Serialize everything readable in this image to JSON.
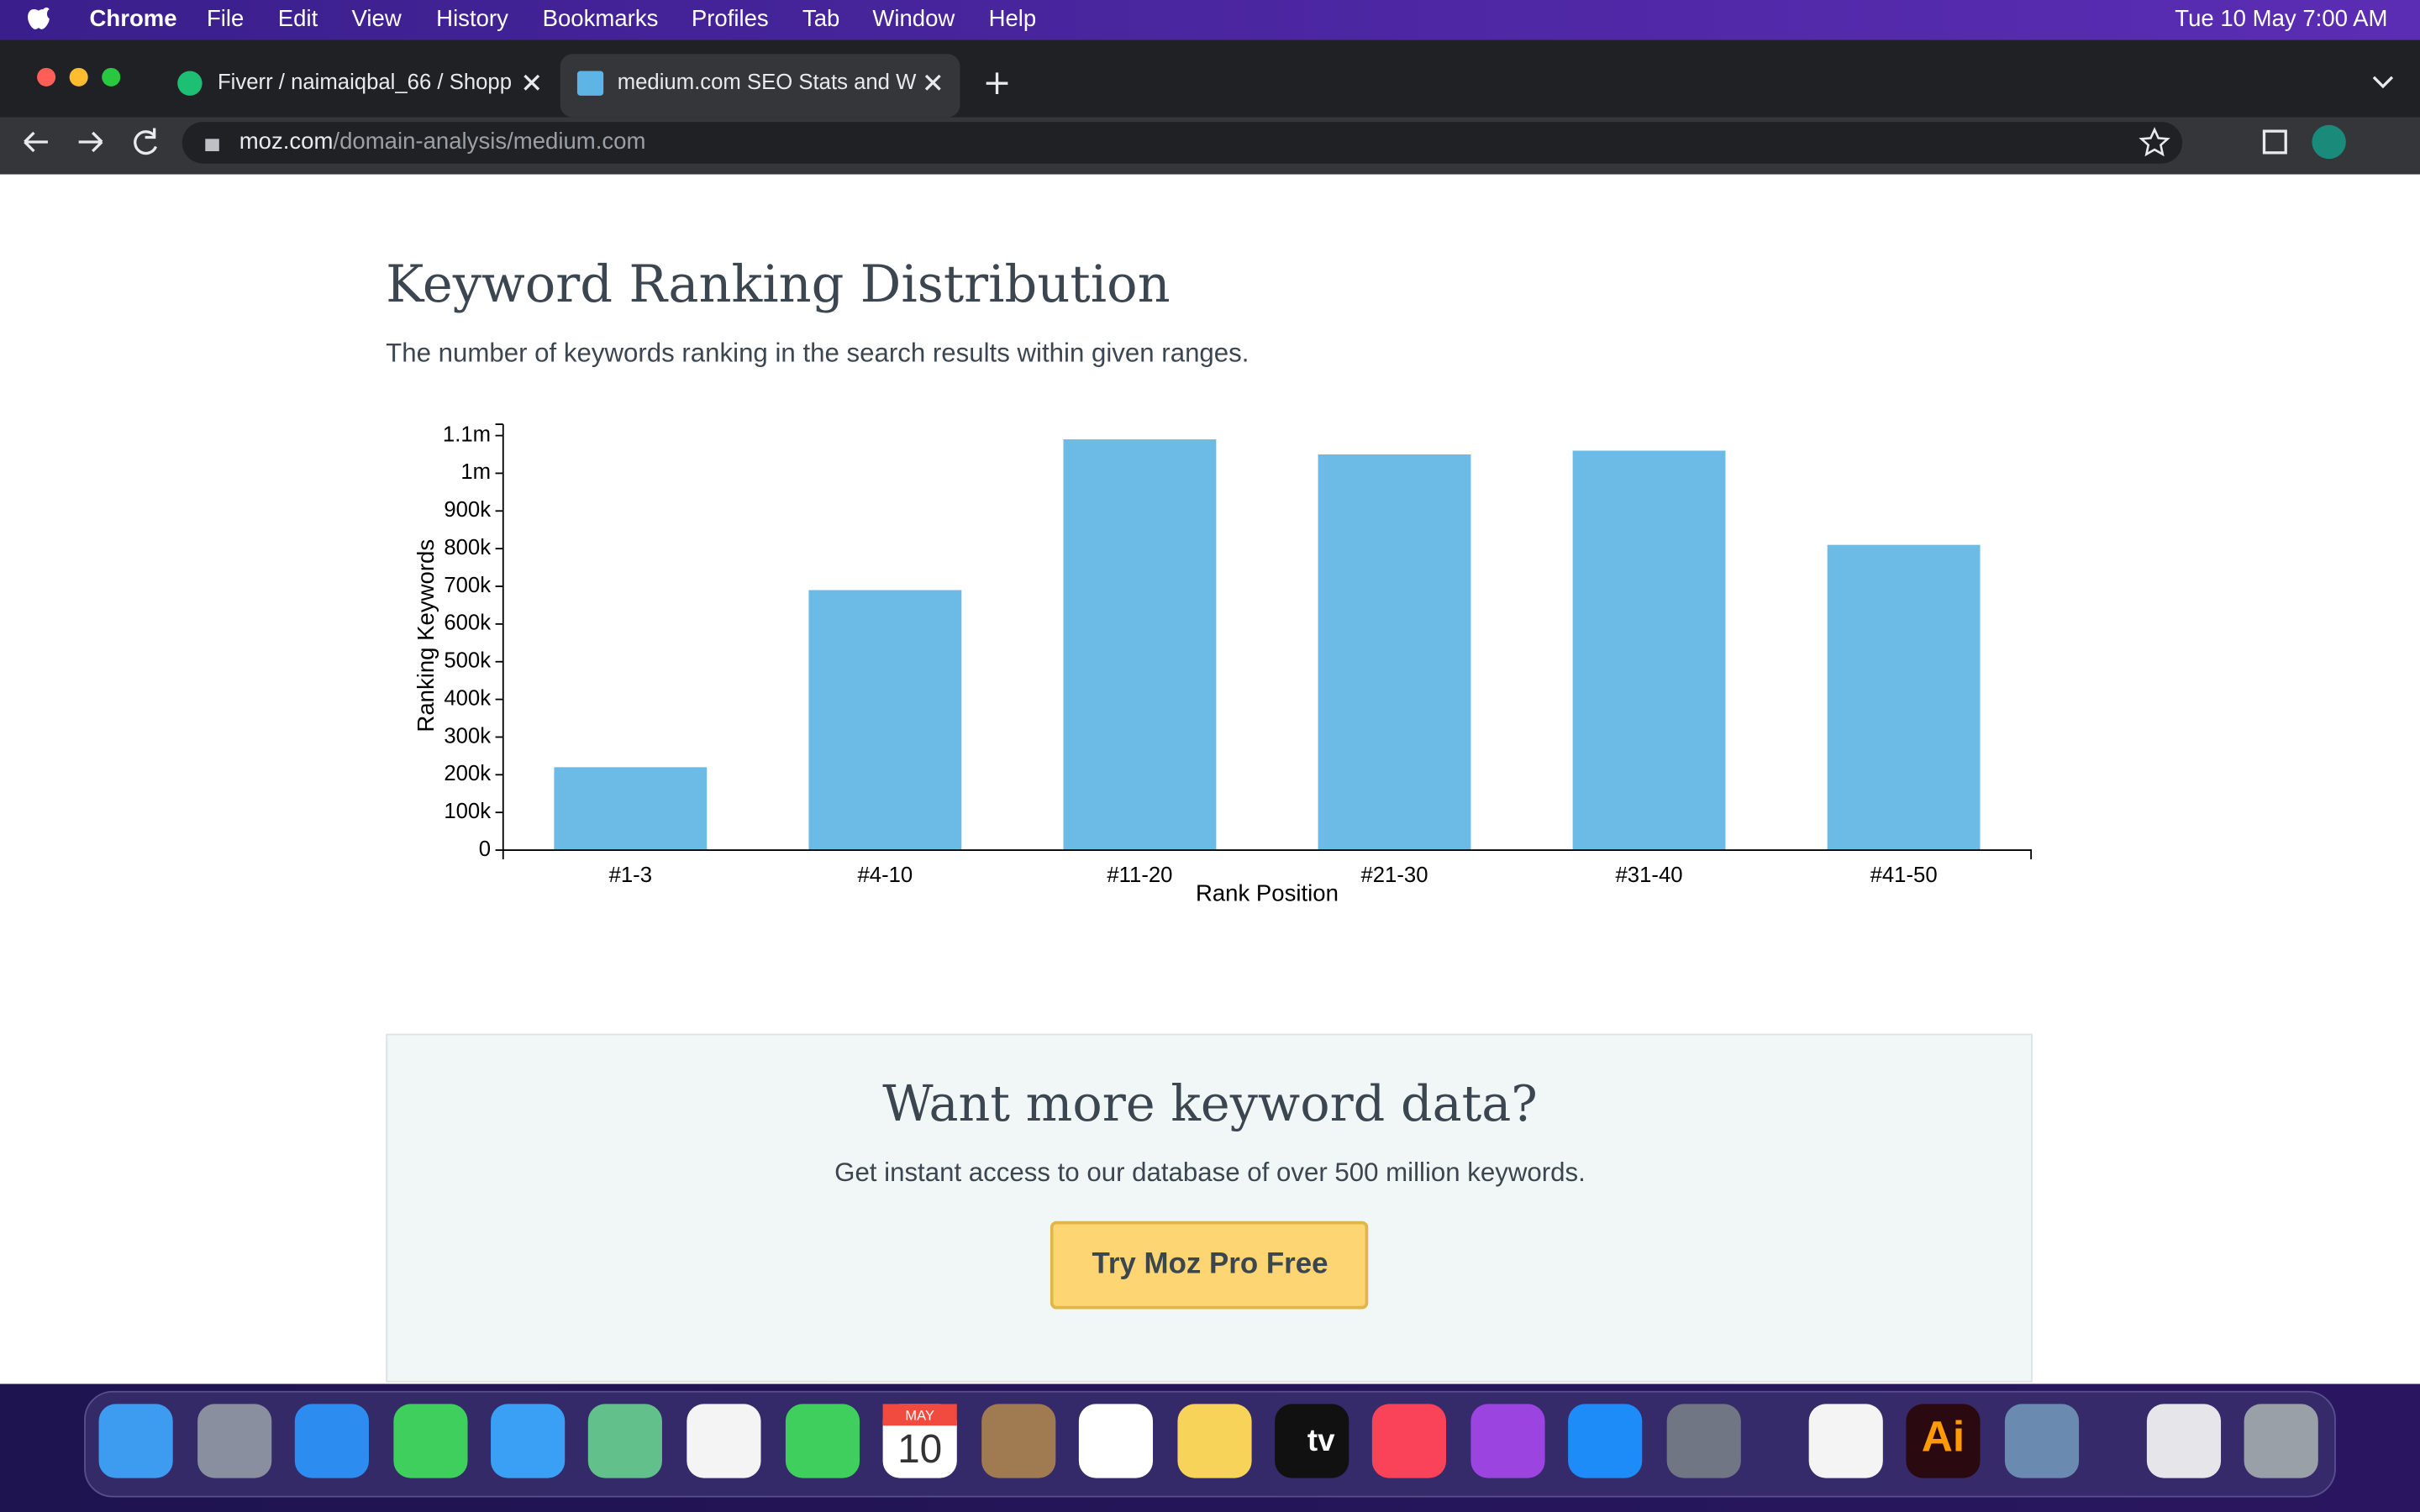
{
  "menubar": {
    "app": "Chrome",
    "items": [
      "File",
      "Edit",
      "View",
      "History",
      "Bookmarks",
      "Profiles",
      "Tab",
      "Window",
      "Help"
    ],
    "clock": "Tue 10 May  7:00 AM"
  },
  "tabs": [
    "Fiverr / naimaiqbal_66 / Shopp",
    "medium.com SEO Stats and W"
  ],
  "address": {
    "host": "moz.com",
    "path": "/domain-analysis/medium.com"
  },
  "chart_data": {
    "type": "bar",
    "title": "Keyword Ranking Distribution",
    "subtitle": "The number of keywords ranking in the search results within given ranges.",
    "x_label": "Rank Position",
    "y_label": "Ranking Keywords",
    "categories": [
      "#1-3",
      "#4-10",
      "#11-20",
      "#21-30",
      "#31-40",
      "#41-50"
    ],
    "values": [
      220000,
      690000,
      1090000,
      1050000,
      1060000,
      810000
    ],
    "color": "#6bbbe6",
    "ylim": [
      0,
      1130000
    ],
    "yticks": [
      0,
      {
        "value": 100000,
        "label": "100k"
      },
      {
        "value": 200000,
        "label": "200k"
      },
      {
        "value": 300000,
        "label": "300k"
      },
      {
        "value": 400000,
        "label": "400k"
      },
      {
        "value": 500000,
        "label": "500k"
      },
      {
        "value": 600000,
        "label": "600k"
      },
      {
        "value": 700000,
        "label": "700k"
      },
      {
        "value": 800000,
        "label": "800k"
      },
      {
        "value": 900000,
        "label": "900k"
      },
      {
        "value": 1000000,
        "label": "1m"
      },
      {
        "value": 1100000,
        "label": "1.1m"
      }
    ],
    "grid": false
  },
  "cta": {
    "title": "Want more keyword data?",
    "text": "Get instant access to our database of over 500 million keywords.",
    "button": "Try Moz Pro Free"
  },
  "dock": {
    "calendar_month": "MAY",
    "calendar_day": "10",
    "tv": "tv",
    "illustrator": "Ai"
  }
}
